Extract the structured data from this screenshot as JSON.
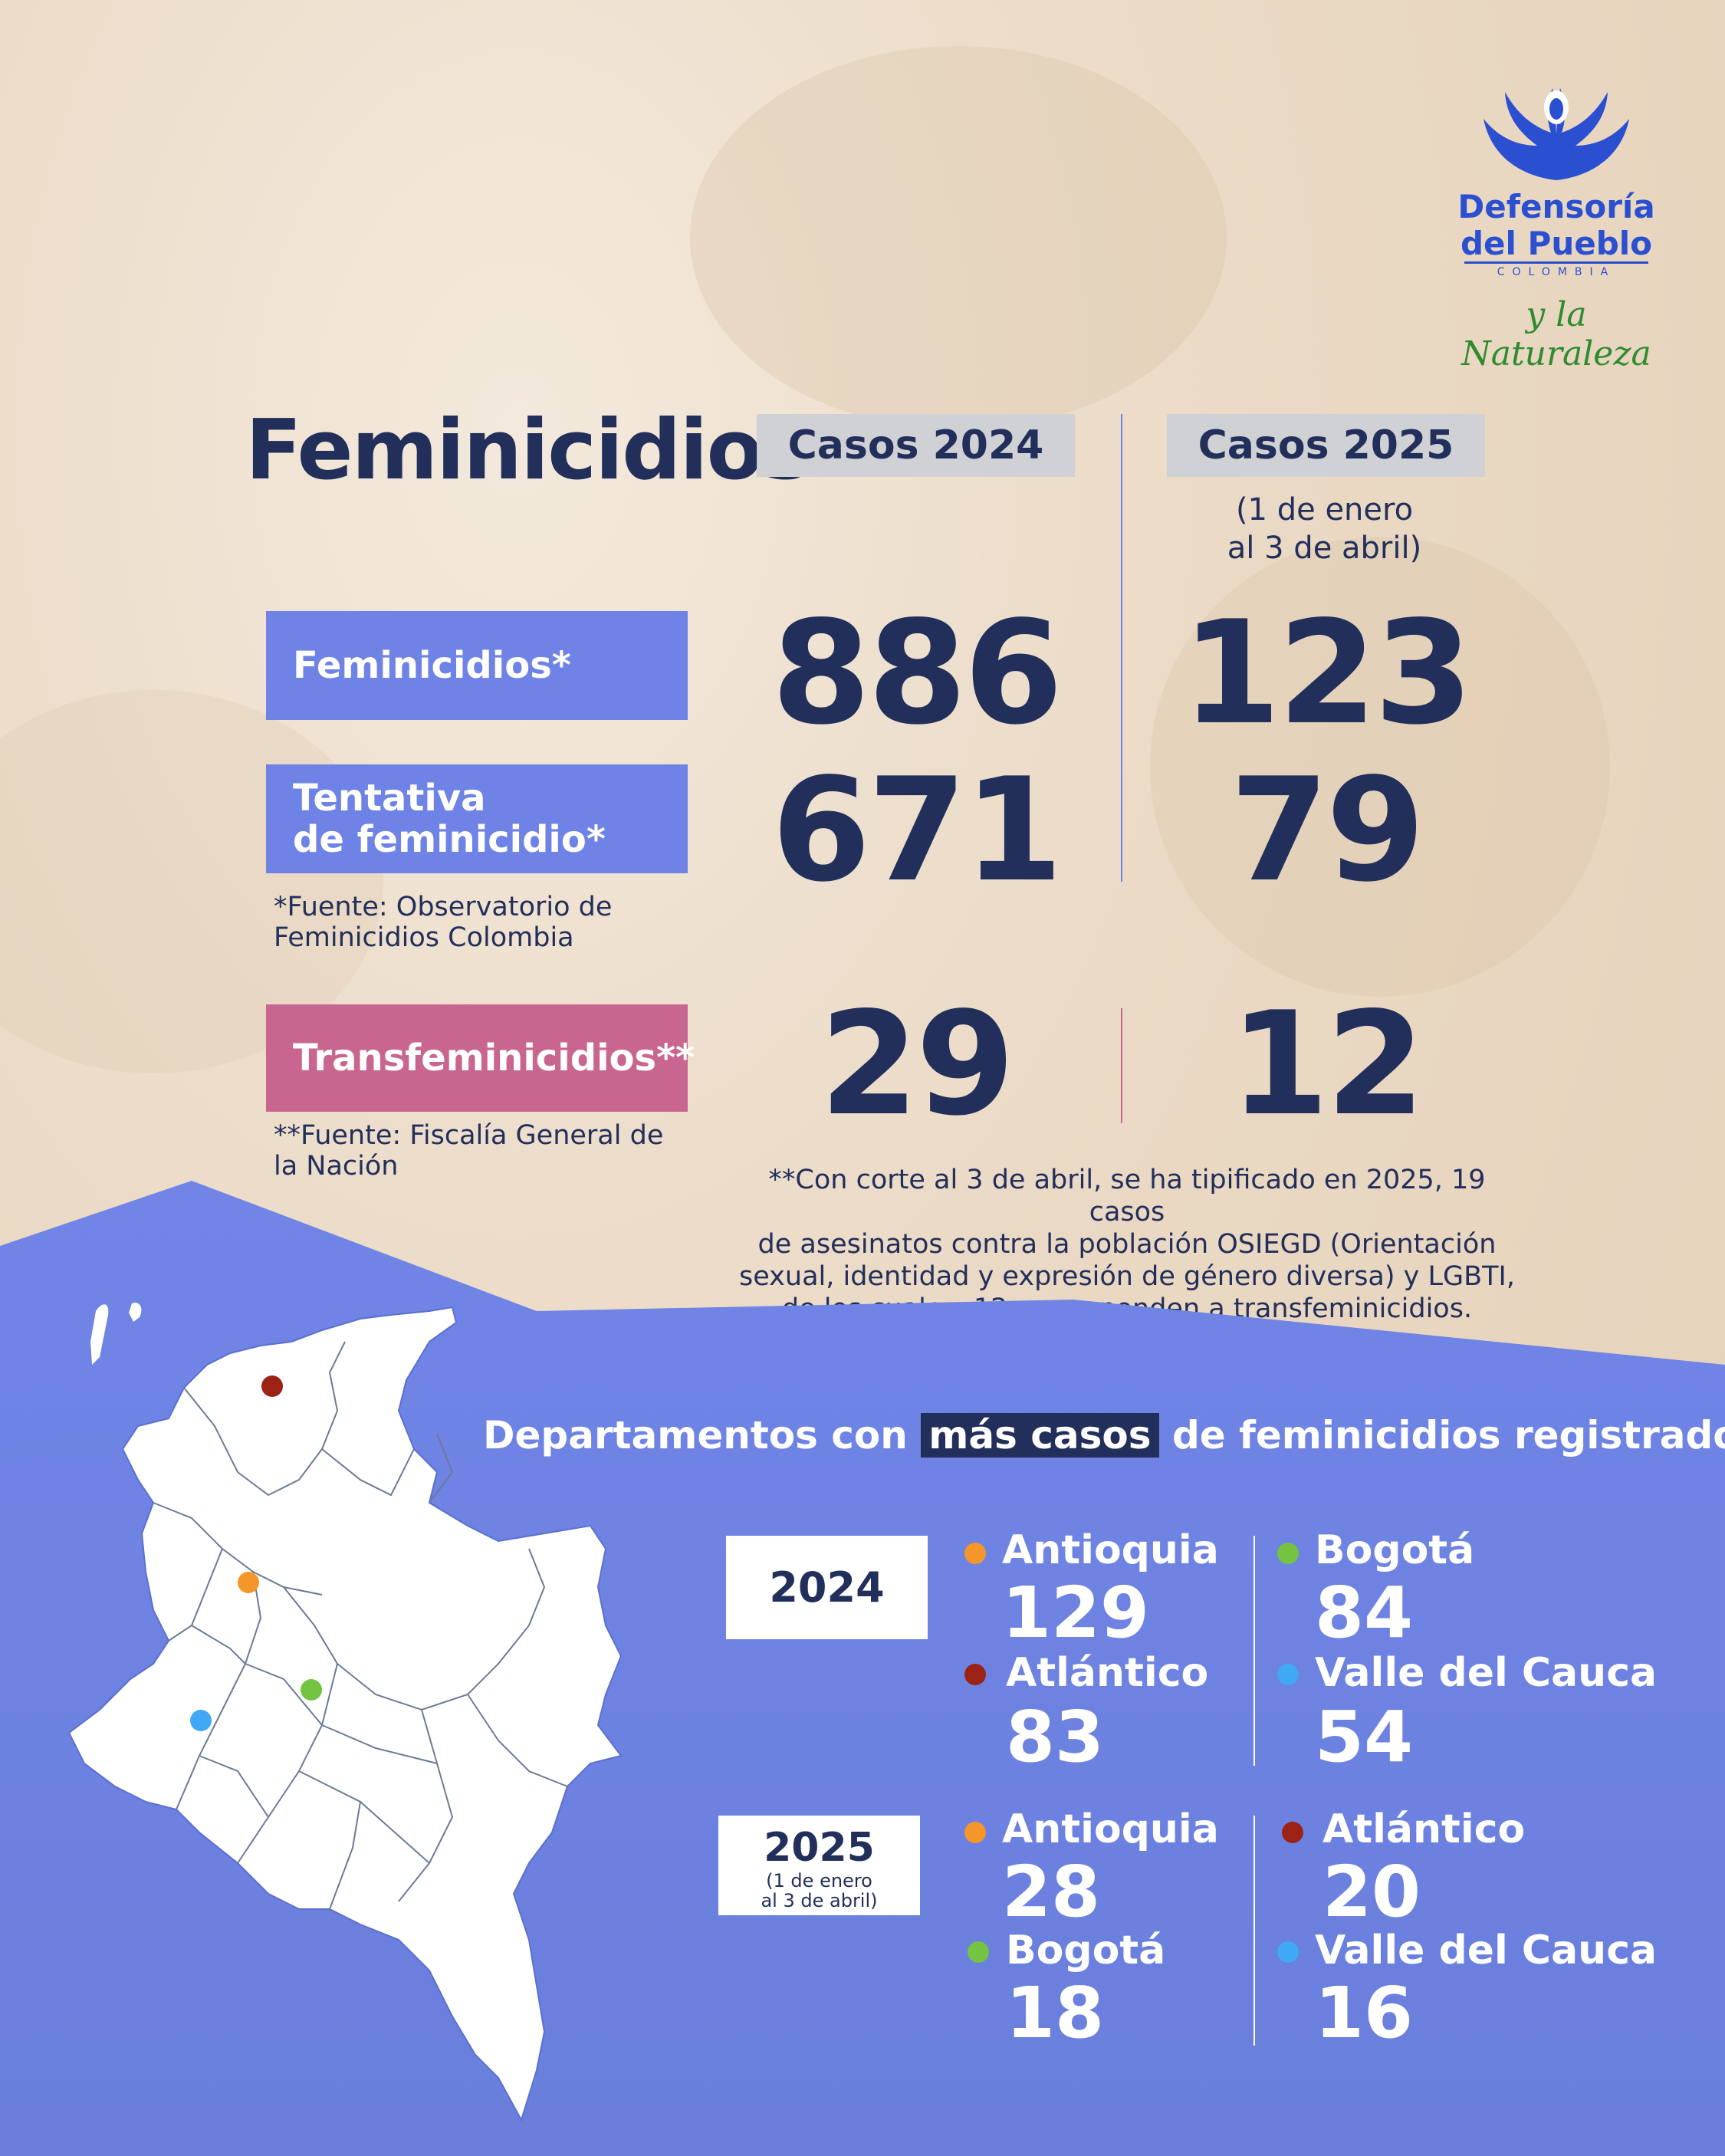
{
  "logo": {
    "line1": "Defensoría",
    "line2": "del Pueblo",
    "country": "COLOMBIA",
    "tagline": "y la Naturaleza",
    "icon": "doves-hands-icon"
  },
  "header": {
    "title": "Feminicidios",
    "col_2024": "Casos 2024",
    "col_2025": "Casos 2025",
    "col_2025_note_line1": "(1 de enero",
    "col_2025_note_line2": "al 3 de abril)"
  },
  "rows": [
    {
      "label_line1": "Feminicidios*",
      "label_line2": "",
      "v2024": "886",
      "v2025": "123"
    },
    {
      "label_line1": "Tentativa",
      "label_line2": "de feminicidio*",
      "v2024": "671",
      "v2025": "79"
    },
    {
      "label_line1": "Transfeminicidios**",
      "label_line2": "",
      "v2024": "29",
      "v2025": "12"
    }
  ],
  "sources": {
    "s1_line1": "*Fuente: Observatorio de",
    "s1_line2": "Feminicidios Colombia",
    "s2_line1": "**Fuente: Fiscalía General de",
    "s2_line2": "la Nación"
  },
  "footnote": [
    "**Con corte al 3 de abril, se ha tipificado en 2025, 19 casos",
    "de asesinatos contra la población OSIEGD (Orientación",
    "sexual, identidad y expresión de género diversa) y LGBTI,",
    "de los cuales, 12 corresponden a transfeminicidios."
  ],
  "departments_section": {
    "title_before": "Departamentos con",
    "title_highlight": "más casos",
    "title_after": "de feminicidios registrados",
    "year_2024": "2024",
    "year_2025": "2025",
    "year_2025_note_line1": "(1 de enero",
    "year_2025_note_line2": "al 3 de abril)",
    "list_2024": [
      {
        "name": "Antioquia",
        "value": "129",
        "color": "#f5962a"
      },
      {
        "name": "Bogotá",
        "value": "84",
        "color": "#74c442"
      },
      {
        "name": "Atlántico",
        "value": "83",
        "color": "#9b2215"
      },
      {
        "name": "Valle del Cauca",
        "value": "54",
        "color": "#3fa9f5"
      }
    ],
    "list_2025": [
      {
        "name": "Antioquia",
        "value": "28",
        "color": "#f5962a"
      },
      {
        "name": "Atlántico",
        "value": "20",
        "color": "#9b2215"
      },
      {
        "name": "Bogotá",
        "value": "18",
        "color": "#74c442"
      },
      {
        "name": "Valle del Cauca",
        "value": "16",
        "color": "#3fa9f5"
      }
    ]
  },
  "colors": {
    "navy": "#232f5b",
    "label_blue": "#6f82e6",
    "label_pink": "#c9668f",
    "section_blue": "#6f82e6",
    "logo_blue": "#2a4fd1",
    "tagline_green": "#2e8b2e"
  }
}
